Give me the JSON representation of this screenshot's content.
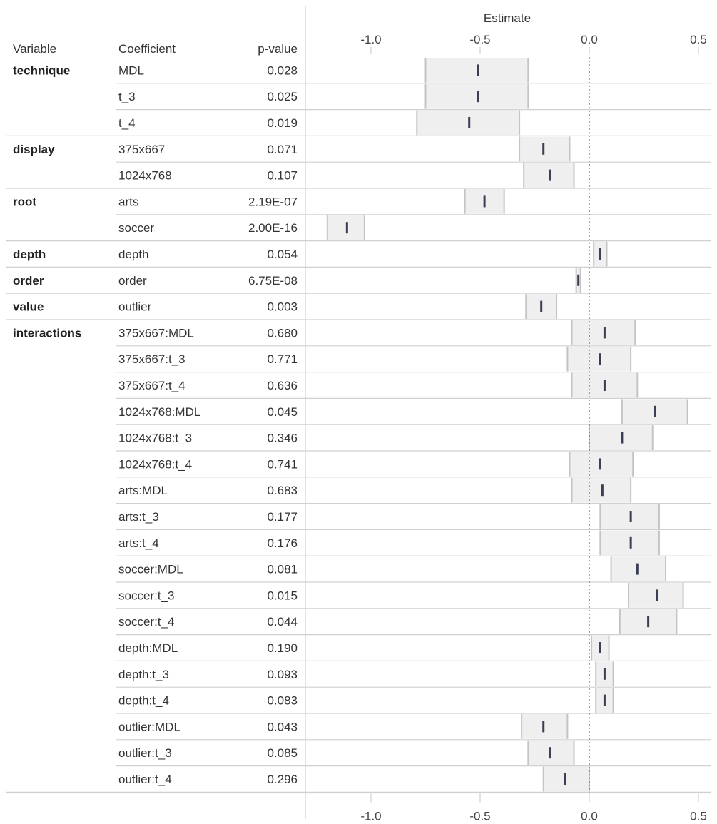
{
  "headers": {
    "variable": "Variable",
    "coefficient": "Coefficient",
    "pvalue": "p-value",
    "axis_title": "Estimate"
  },
  "chart_data": {
    "type": "forest",
    "title": "",
    "xlabel": "Estimate",
    "xlim": [
      -1.3,
      0.52
    ],
    "xticks": [
      -1.0,
      -0.5,
      0.0,
      0.5
    ],
    "xtick_labels": [
      "-1.0",
      "-0.5",
      "0.0",
      "0.5"
    ],
    "reference_line": 0.0,
    "groups": [
      {
        "variable": "technique",
        "rows": [
          {
            "coefficient": "MDL",
            "pvalue": "0.028",
            "estimate": -0.51,
            "ci": [
              -0.75,
              -0.28
            ]
          },
          {
            "coefficient": "t_3",
            "pvalue": "0.025",
            "estimate": -0.51,
            "ci": [
              -0.75,
              -0.28
            ]
          },
          {
            "coefficient": "t_4",
            "pvalue": "0.019",
            "estimate": -0.55,
            "ci": [
              -0.79,
              -0.32
            ]
          }
        ]
      },
      {
        "variable": "display",
        "rows": [
          {
            "coefficient": "375x667",
            "pvalue": "0.071",
            "estimate": -0.21,
            "ci": [
              -0.32,
              -0.09
            ]
          },
          {
            "coefficient": "1024x768",
            "pvalue": "0.107",
            "estimate": -0.18,
            "ci": [
              -0.3,
              -0.07
            ]
          }
        ]
      },
      {
        "variable": "root",
        "rows": [
          {
            "coefficient": "arts",
            "pvalue": "2.19E-07",
            "estimate": -0.48,
            "ci": [
              -0.57,
              -0.39
            ]
          },
          {
            "coefficient": "soccer",
            "pvalue": "2.00E-16",
            "estimate": -1.11,
            "ci": [
              -1.2,
              -1.03
            ]
          }
        ]
      },
      {
        "variable": "depth",
        "rows": [
          {
            "coefficient": "depth",
            "pvalue": "0.054",
            "estimate": 0.05,
            "ci": [
              0.02,
              0.08
            ]
          }
        ]
      },
      {
        "variable": "order",
        "rows": [
          {
            "coefficient": "order",
            "pvalue": "6.75E-08",
            "estimate": -0.05,
            "ci": [
              -0.06,
              -0.04
            ]
          }
        ]
      },
      {
        "variable": "value",
        "rows": [
          {
            "coefficient": "outlier",
            "pvalue": "0.003",
            "estimate": -0.22,
            "ci": [
              -0.29,
              -0.15
            ]
          }
        ]
      },
      {
        "variable": "interactions",
        "rows": [
          {
            "coefficient": "375x667:MDL",
            "pvalue": "0.680",
            "estimate": 0.07,
            "ci": [
              -0.08,
              0.21
            ]
          },
          {
            "coefficient": "375x667:t_3",
            "pvalue": "0.771",
            "estimate": 0.05,
            "ci": [
              -0.1,
              0.19
            ]
          },
          {
            "coefficient": "375x667:t_4",
            "pvalue": "0.636",
            "estimate": 0.07,
            "ci": [
              -0.08,
              0.22
            ]
          },
          {
            "coefficient": "1024x768:MDL",
            "pvalue": "0.045",
            "estimate": 0.3,
            "ci": [
              0.15,
              0.45
            ]
          },
          {
            "coefficient": "1024x768:t_3",
            "pvalue": "0.346",
            "estimate": 0.15,
            "ci": [
              0.0,
              0.29
            ]
          },
          {
            "coefficient": "1024x768:t_4",
            "pvalue": "0.741",
            "estimate": 0.05,
            "ci": [
              -0.09,
              0.2
            ]
          },
          {
            "coefficient": "arts:MDL",
            "pvalue": "0.683",
            "estimate": 0.06,
            "ci": [
              -0.08,
              0.19
            ]
          },
          {
            "coefficient": "arts:t_3",
            "pvalue": "0.177",
            "estimate": 0.19,
            "ci": [
              0.05,
              0.32
            ]
          },
          {
            "coefficient": "arts:t_4",
            "pvalue": "0.176",
            "estimate": 0.19,
            "ci": [
              0.05,
              0.32
            ]
          },
          {
            "coefficient": "soccer:MDL",
            "pvalue": "0.081",
            "estimate": 0.22,
            "ci": [
              0.1,
              0.35
            ]
          },
          {
            "coefficient": "soccer:t_3",
            "pvalue": "0.015",
            "estimate": 0.31,
            "ci": [
              0.18,
              0.43
            ]
          },
          {
            "coefficient": "soccer:t_4",
            "pvalue": "0.044",
            "estimate": 0.27,
            "ci": [
              0.14,
              0.4
            ]
          },
          {
            "coefficient": "depth:MDL",
            "pvalue": "0.190",
            "estimate": 0.05,
            "ci": [
              0.01,
              0.09
            ]
          },
          {
            "coefficient": "depth:t_3",
            "pvalue": "0.093",
            "estimate": 0.07,
            "ci": [
              0.03,
              0.11
            ]
          },
          {
            "coefficient": "depth:t_4",
            "pvalue": "0.083",
            "estimate": 0.07,
            "ci": [
              0.03,
              0.11
            ]
          },
          {
            "coefficient": "outlier:MDL",
            "pvalue": "0.043",
            "estimate": -0.21,
            "ci": [
              -0.31,
              -0.1
            ]
          },
          {
            "coefficient": "outlier:t_3",
            "pvalue": "0.085",
            "estimate": -0.18,
            "ci": [
              -0.28,
              -0.07
            ]
          },
          {
            "coefficient": "outlier:t_4",
            "pvalue": "0.296",
            "estimate": -0.11,
            "ci": [
              -0.21,
              0.0
            ]
          }
        ]
      }
    ]
  },
  "colors": {
    "ci_fill": "#efefef",
    "ci_edge": "#c4c4c4",
    "estimate_mark": "#3b3f55",
    "grid": "#d0d0d0",
    "reference_line": "#666666"
  }
}
